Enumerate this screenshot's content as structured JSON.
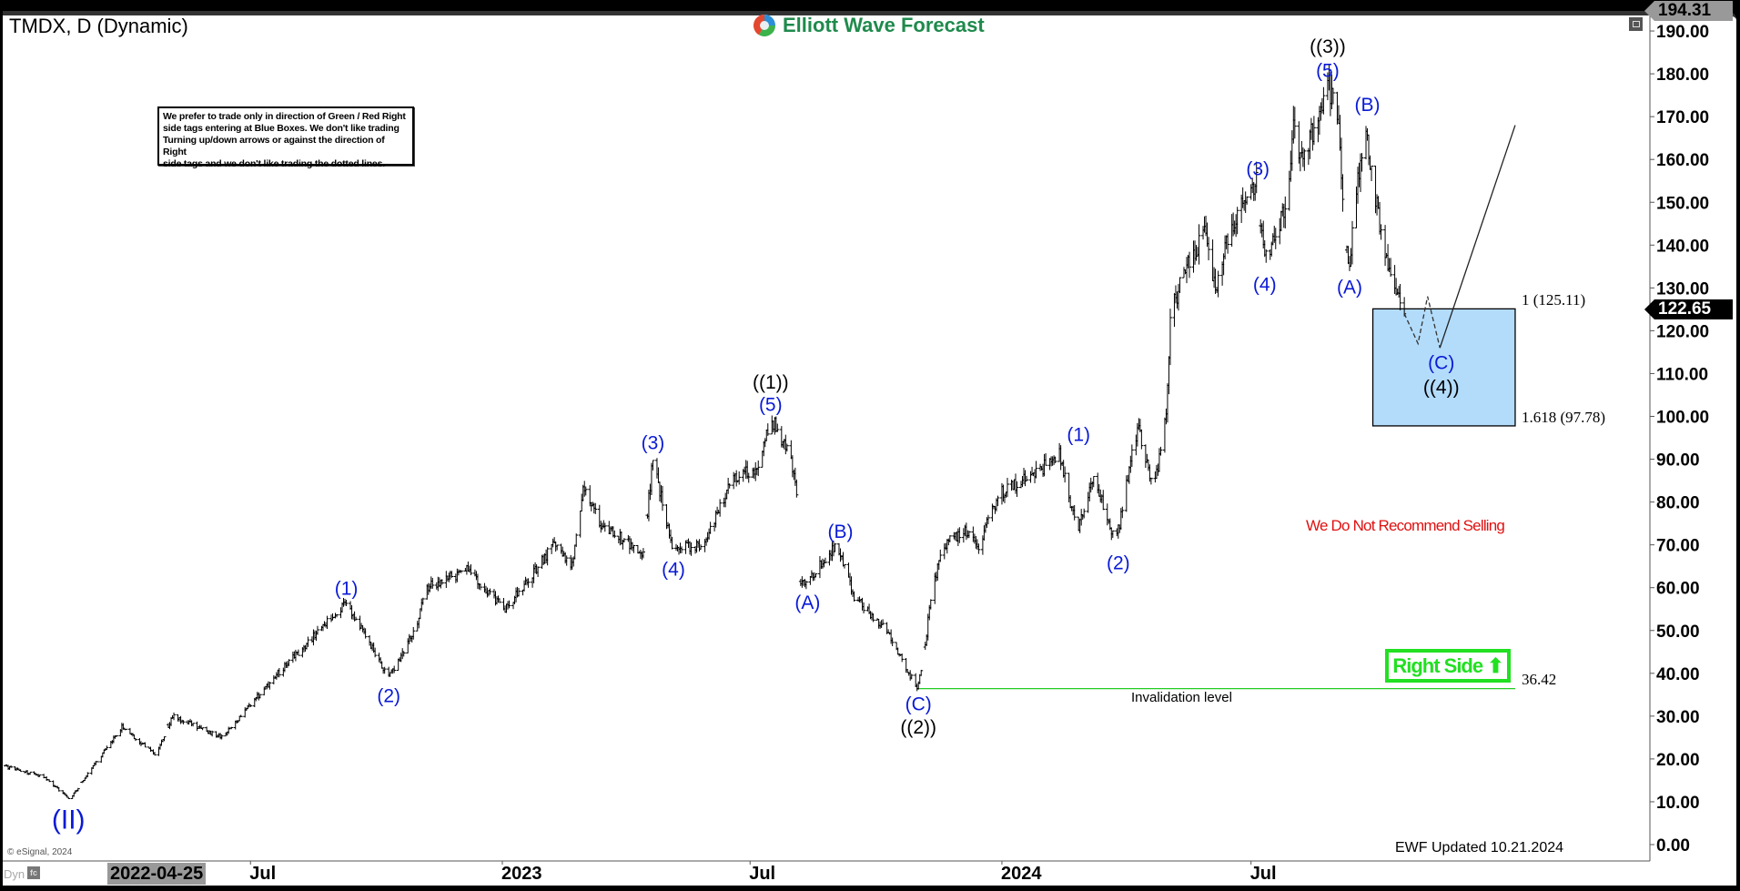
{
  "header": {
    "title": "TMDX, D (Dynamic)",
    "logo_text": "Elliott Wave Forecast"
  },
  "disclaimer": [
    "We prefer to trade only in direction of Green / Red Right",
    "side tags entering at Blue Boxes. We don't like trading",
    "Turning up/down arrows or against the direction of Right",
    "side tags and we don't like trading the dotted lines."
  ],
  "footer": {
    "copyright": "© eSignal, 2024",
    "dyn": "Dyn",
    "fc": "fc",
    "updated": "EWF Updated 10.21.2024"
  },
  "colors": {
    "wave_blue": "#0a1ad6",
    "wave_black": "#000000",
    "box_fill": "#b3dcfb",
    "invalidation": "#22cc22",
    "right_side": "#22e022",
    "no_sell": "#e01010",
    "bars": "#000000"
  },
  "chart_data": {
    "type": "bar",
    "style": "ohlc",
    "symbol": "TMDX",
    "interval": "D",
    "ylim": [
      0,
      194.31
    ],
    "yticks": [
      "0.00",
      "10.00",
      "20.00",
      "30.00",
      "40.00",
      "50.00",
      "60.00",
      "70.00",
      "80.00",
      "90.00",
      "100.00",
      "110.00",
      "120.00",
      "130.00",
      "140.00",
      "150.00",
      "160.00",
      "170.00",
      "180.00",
      "190.00"
    ],
    "xticks": [
      {
        "date": "2022-07-01",
        "label": "Jul"
      },
      {
        "date": "2023-01-01",
        "label": "2023"
      },
      {
        "date": "2023-07-01",
        "label": "Jul"
      },
      {
        "date": "2024-01-01",
        "label": "2024"
      },
      {
        "date": "2024-07-01",
        "label": "Jul"
      }
    ],
    "cursor_date": {
      "date": "2022-04-25",
      "label": "2022-04-25"
    },
    "price_tags": {
      "high": "194.31",
      "last": "122.65"
    },
    "swing_path": [
      [
        "2022-01-01",
        18.4
      ],
      [
        "2022-01-31",
        15.8
      ],
      [
        "2022-02-19",
        10.6
      ],
      [
        "2022-03-29",
        27.5
      ],
      [
        "2022-04-23",
        21
      ],
      [
        "2022-05-05",
        30
      ],
      [
        "2022-06-10",
        25
      ],
      [
        "2022-07-21",
        40
      ],
      [
        "2022-09-09",
        56.5
      ],
      [
        "2022-10-10",
        39
      ],
      [
        "2022-10-30",
        50.8
      ],
      [
        "2022-11-06",
        60
      ],
      [
        "2022-12-06",
        64
      ],
      [
        "2023-01-03",
        55
      ],
      [
        "2023-02-08",
        70
      ],
      [
        "2023-02-21",
        65
      ],
      [
        "2023-03-01",
        83
      ],
      [
        "2023-03-13",
        75
      ],
      [
        "2023-04-14",
        68
      ],
      [
        "2023-04-21",
        90.5
      ],
      [
        "2023-05-05",
        69
      ],
      [
        "2023-05-29",
        70
      ],
      [
        "2023-06-18",
        86
      ],
      [
        "2023-07-08",
        88
      ],
      [
        "2023-07-16",
        100
      ],
      [
        "2023-07-30",
        91
      ],
      [
        "2023-08-04",
        82
      ],
      [
        "2023-08-06",
        62
      ],
      [
        "2023-08-12",
        61
      ],
      [
        "2023-08-22",
        66
      ],
      [
        "2023-09-03",
        70
      ],
      [
        "2023-09-15",
        58
      ],
      [
        "2023-10-10",
        49.5
      ],
      [
        "2023-10-31",
        36.5
      ],
      [
        "2023-11-05",
        43
      ],
      [
        "2023-11-09",
        56
      ],
      [
        "2023-11-19",
        70
      ],
      [
        "2023-12-05",
        73
      ],
      [
        "2023-12-15",
        70
      ],
      [
        "2023-12-30",
        82
      ],
      [
        "2024-01-23",
        86
      ],
      [
        "2024-02-12",
        91
      ],
      [
        "2024-02-25",
        73
      ],
      [
        "2024-03-08",
        86
      ],
      [
        "2024-03-24",
        70
      ],
      [
        "2024-04-09",
        97.5
      ],
      [
        "2024-04-21",
        83
      ],
      [
        "2024-04-29",
        98
      ],
      [
        "2024-05-01",
        105.8
      ],
      [
        "2024-05-03",
        123
      ],
      [
        "2024-05-11",
        132
      ],
      [
        "2024-05-28",
        143
      ],
      [
        "2024-06-05",
        130
      ],
      [
        "2024-06-17",
        145
      ],
      [
        "2024-07-05",
        154.5
      ],
      [
        "2024-07-11",
        136
      ],
      [
        "2024-07-28",
        150
      ],
      [
        "2024-08-01",
        172
      ],
      [
        "2024-08-05",
        158
      ],
      [
        "2024-08-27",
        177
      ],
      [
        "2024-09-02",
        171
      ],
      [
        "2024-09-10",
        134
      ],
      [
        "2024-09-22",
        169
      ],
      [
        "2024-10-04",
        143
      ],
      [
        "2024-10-10",
        135
      ],
      [
        "2024-10-21",
        122.65
      ]
    ],
    "projection": {
      "dashed": [
        [
          "2024-10-21",
          124
        ],
        [
          "2024-10-31",
          117
        ],
        [
          "2024-11-07",
          128
        ],
        [
          "2024-11-16",
          116
        ]
      ],
      "solid": [
        [
          "2024-11-16",
          116
        ],
        [
          "2025-01-10",
          168
        ]
      ]
    },
    "blue_box": {
      "from": "2024-09-28",
      "to": "2025-01-10",
      "top": 125.11,
      "bottom": 97.78,
      "top_label": "1 (125.11)",
      "bottom_label": "1.618 (97.78)"
    },
    "invalidation": {
      "from": "2023-10-31",
      "to": "2025-01-10",
      "price": 36.42,
      "price_label": "36.42",
      "label": "Invalidation level"
    },
    "right_side_label": "Right Side",
    "no_sell_label": "We Do Not Recommend Selling",
    "wave_labels": [
      {
        "text": "(II)",
        "date": "2022-02-18",
        "price": 5.4,
        "color": "blue",
        "big": true
      },
      {
        "text": "(1)",
        "date": "2022-09-09",
        "price": 60,
        "color": "blue"
      },
      {
        "text": "(2)",
        "date": "2022-10-10",
        "price": 35,
        "color": "blue"
      },
      {
        "text": "(3)",
        "date": "2023-04-21",
        "price": 94,
        "color": "blue"
      },
      {
        "text": "(4)",
        "date": "2023-05-06",
        "price": 64.5,
        "color": "blue"
      },
      {
        "text": "(5)",
        "date": "2023-07-16",
        "price": 103,
        "color": "blue"
      },
      {
        "text": "((1))",
        "date": "2023-07-16",
        "price": 108.2,
        "color": "black"
      },
      {
        "text": "(A)",
        "date": "2023-08-12",
        "price": 56.8,
        "color": "blue"
      },
      {
        "text": "(B)",
        "date": "2023-09-05",
        "price": 73.3,
        "color": "blue"
      },
      {
        "text": "(C)",
        "date": "2023-11-01",
        "price": 33,
        "color": "blue"
      },
      {
        "text": "((2))",
        "date": "2023-11-01",
        "price": 27.6,
        "color": "black"
      },
      {
        "text": "(1)",
        "date": "2024-02-26",
        "price": 96,
        "color": "blue"
      },
      {
        "text": "(2)",
        "date": "2024-03-26",
        "price": 66,
        "color": "blue"
      },
      {
        "text": "(3)",
        "date": "2024-07-06",
        "price": 158,
        "color": "blue"
      },
      {
        "text": "(4)",
        "date": "2024-07-11",
        "price": 131,
        "color": "blue"
      },
      {
        "text": "(5)",
        "date": "2024-08-26",
        "price": 181,
        "color": "blue"
      },
      {
        "text": "((3))",
        "date": "2024-08-26",
        "price": 186.6,
        "color": "black"
      },
      {
        "text": "(A)",
        "date": "2024-09-11",
        "price": 130.4,
        "color": "blue"
      },
      {
        "text": "(B)",
        "date": "2024-09-24",
        "price": 173,
        "color": "blue"
      },
      {
        "text": "(C)",
        "date": "2024-11-17",
        "price": 112.7,
        "color": "blue"
      },
      {
        "text": "((4))",
        "date": "2024-11-17",
        "price": 107,
        "color": "black"
      }
    ]
  }
}
